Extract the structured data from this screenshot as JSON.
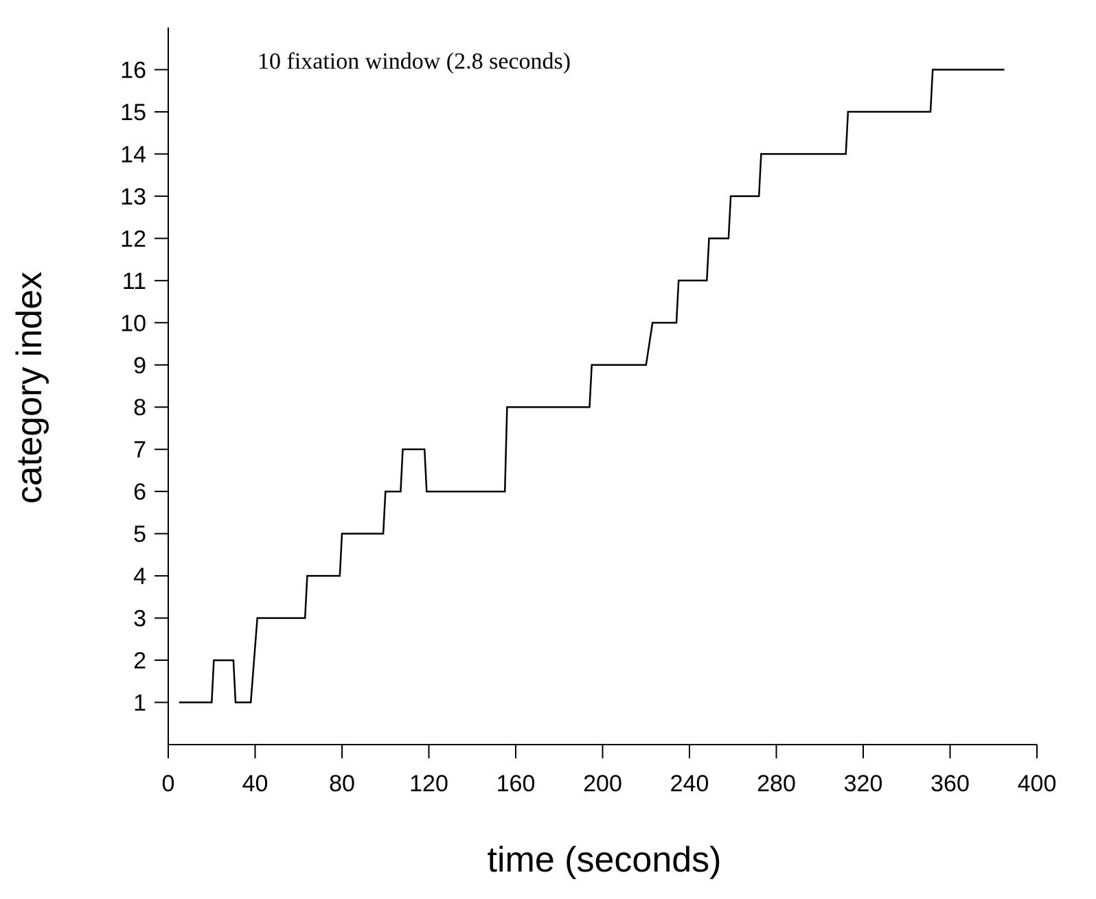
{
  "chart_data": {
    "type": "line",
    "title": "",
    "annotation": "10 fixation window (2.8 seconds)",
    "xlabel": "time (seconds)",
    "ylabel": "category index",
    "xlim": [
      0,
      400
    ],
    "ylim": [
      0,
      17
    ],
    "xticks": [
      0,
      40,
      80,
      120,
      160,
      200,
      240,
      280,
      320,
      360,
      400
    ],
    "yticks": [
      1,
      2,
      3,
      4,
      5,
      6,
      7,
      8,
      9,
      10,
      11,
      12,
      13,
      14,
      15,
      16
    ],
    "grid": false,
    "legend": "none",
    "series": [
      {
        "color": "#000000",
        "x": [
          5,
          20,
          21,
          30,
          31,
          38,
          41,
          63,
          64,
          79,
          80,
          99,
          100,
          107,
          108,
          118,
          119,
          155,
          156,
          194,
          195,
          220,
          223,
          234,
          235,
          248,
          249,
          258,
          259,
          272,
          273,
          312,
          313,
          351,
          352,
          385
        ],
        "y": [
          1,
          1,
          2,
          2,
          1,
          1,
          3,
          3,
          4,
          4,
          5,
          5,
          6,
          6,
          7,
          7,
          6,
          6,
          8,
          8,
          9,
          9,
          10,
          10,
          11,
          11,
          12,
          12,
          13,
          13,
          14,
          14,
          15,
          15,
          16,
          16
        ]
      }
    ]
  }
}
